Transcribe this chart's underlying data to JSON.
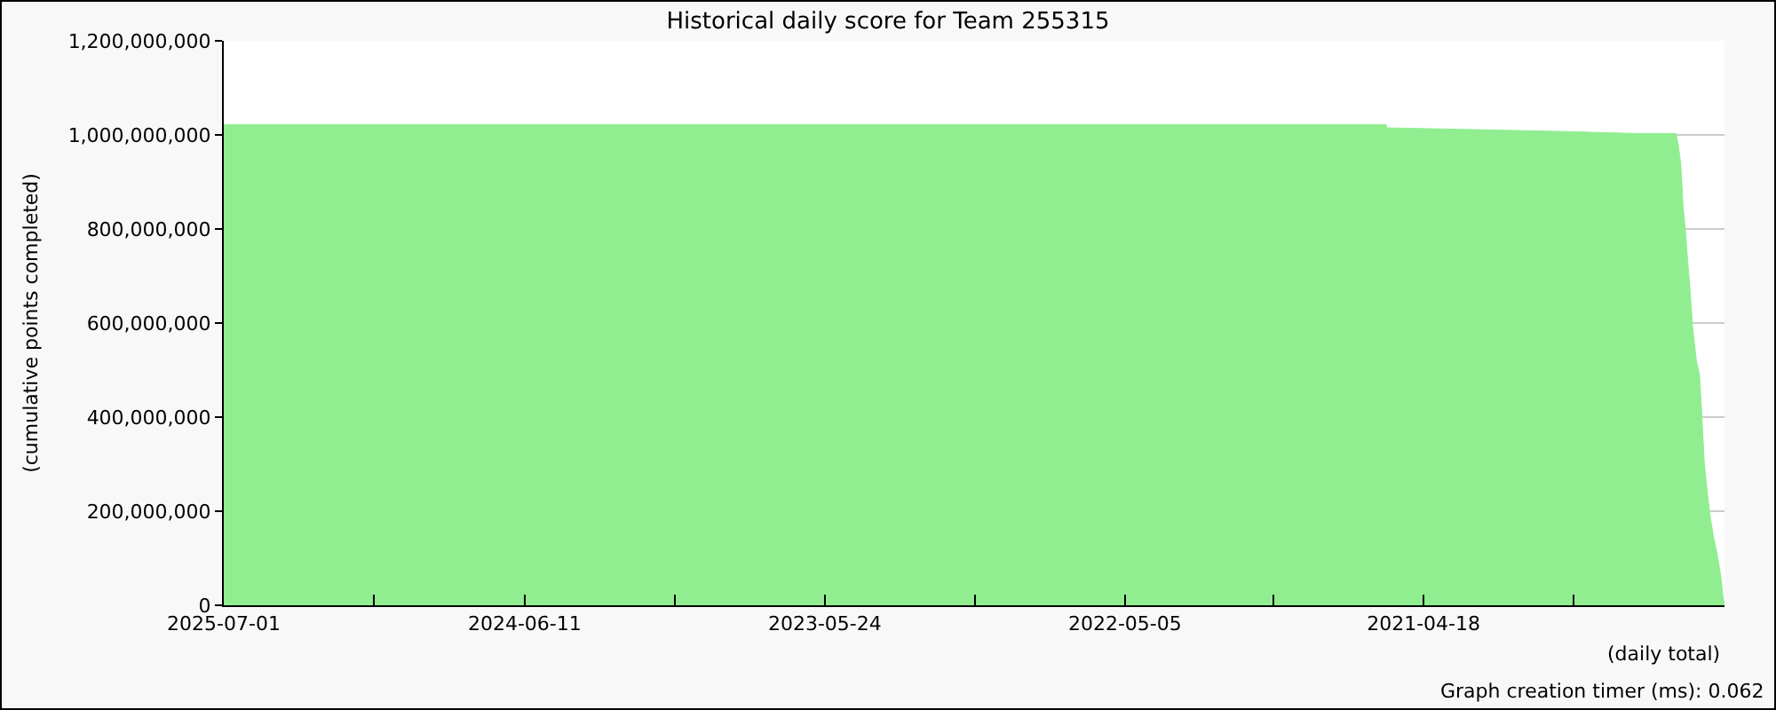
{
  "chart_data": {
    "type": "area",
    "title": "Historical daily score for Team 255315",
    "xlabel": "(daily total)",
    "ylabel": "(cumulative points completed)",
    "annotations": [
      "Graph creation timer (ms): 0.062"
    ],
    "x": [
      "2025-07-01",
      "2021-06-05",
      "2021-06-04",
      "2021-01-06",
      "2020-10-16",
      "2020-07-21",
      "2020-05-30",
      "2020-05-27",
      "2020-05-24",
      "2020-05-21",
      "2020-05-18",
      "2020-05-15",
      "2020-05-12",
      "2020-05-09",
      "2020-05-04",
      "2020-04-30",
      "2020-04-27",
      "2020-04-24",
      "2020-04-19",
      "2020-04-16",
      "2020-04-12",
      "2020-04-07",
      "2020-04-03",
      "2020-03-31",
      "2020-03-29"
    ],
    "series": [
      {
        "color": "#90ee90",
        "values": [
          1022000000,
          1022000000,
          1015000000,
          1010000000,
          1007000000,
          1003000000,
          1003000000,
          977000000,
          940000000,
          850000000,
          795000000,
          730000000,
          670000000,
          595000000,
          520000000,
          490000000,
          405000000,
          305000000,
          225000000,
          185000000,
          145000000,
          105000000,
          65000000,
          20000000,
          0
        ]
      }
    ],
    "xlim": [
      "2025-07-01",
      "2020-03-29"
    ],
    "xticks": [
      {
        "value": "2025-07-01",
        "label": "2025-07-01"
      },
      {
        "value": "2024-12-21",
        "label": null
      },
      {
        "value": "2024-06-11",
        "label": "2024-06-11"
      },
      {
        "value": "2023-12-02",
        "label": null
      },
      {
        "value": "2023-05-24",
        "label": "2023-05-24"
      },
      {
        "value": "2022-11-13",
        "label": null
      },
      {
        "value": "2022-05-05",
        "label": "2022-05-05"
      },
      {
        "value": "2021-10-27",
        "label": null
      },
      {
        "value": "2021-04-18",
        "label": "2021-04-18"
      },
      {
        "value": "2020-10-08",
        "label": null
      },
      {
        "value": "2020-03-29",
        "label": null
      }
    ],
    "ylim": [
      0,
      1200000000
    ],
    "yticks": [
      0,
      {
        "value": 200000000,
        "label": "200,000,000"
      },
      {
        "value": 400000000,
        "label": "400,000,000"
      },
      {
        "value": 600000000,
        "label": "600,000,000"
      },
      {
        "value": 800000000,
        "label": "800,000,000"
      },
      {
        "value": 1000000000,
        "label": "1,000,000,000"
      },
      {
        "value": 1200000000,
        "label": "1,200,000,000"
      }
    ],
    "grid": "y"
  }
}
